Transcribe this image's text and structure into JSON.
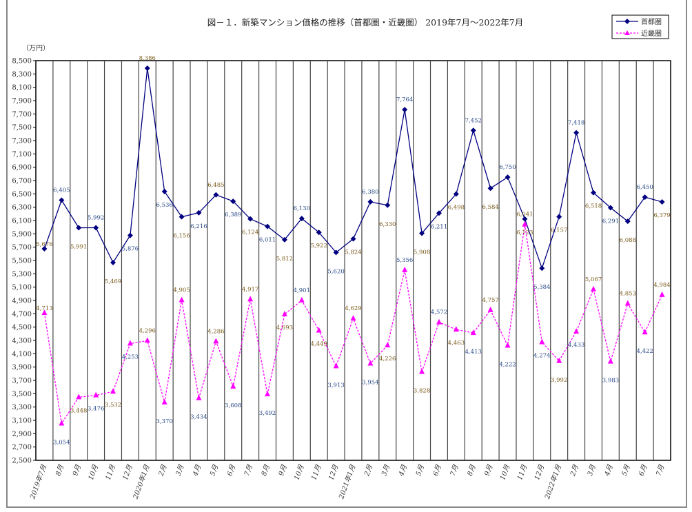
{
  "chart_data": {
    "type": "line",
    "title": "図－１．新築マンション価格の推移（首都圏・近畿圏） 2019年7月～2022年7月",
    "ylabel": "（万円）",
    "xlabel": "",
    "ylim": [
      2500,
      8500
    ],
    "ytick_step": 200,
    "grid": "vertical",
    "legend_position": "top-right",
    "categories": [
      "2019年7月",
      "8月",
      "9月",
      "10月",
      "11月",
      "12月",
      "2020年1月",
      "2月",
      "3月",
      "4月",
      "5月",
      "6月",
      "7月",
      "8月",
      "9月",
      "10月",
      "11月",
      "12月",
      "2021年1月",
      "2月",
      "3月",
      "4月",
      "5月",
      "6月",
      "7月",
      "8月",
      "9月",
      "10月",
      "11月",
      "12月",
      "2022年1月",
      "2月",
      "3月",
      "4月",
      "5月",
      "6月",
      "7月"
    ],
    "series": [
      {
        "name": "首都圏",
        "color": "#000080",
        "marker": "diamond",
        "line": "solid",
        "values": [
          5676,
          6405,
          5991,
          5992,
          5469,
          5876,
          8386,
          6536,
          6156,
          6216,
          6485,
          6389,
          6124,
          6011,
          5812,
          6130,
          5922,
          5620,
          5824,
          6380,
          6330,
          7764,
          5908,
          6211,
          6498,
          7452,
          6584,
          6750,
          6123,
          5384,
          6157,
          7418,
          6518,
          6291,
          6088,
          6450,
          6379
        ]
      },
      {
        "name": "近畿圏",
        "color": "#ff00ff",
        "marker": "triangle",
        "line": "dashed",
        "values": [
          4713,
          3054,
          3448,
          3476,
          3532,
          4253,
          4296,
          3370,
          4905,
          3434,
          4286,
          3608,
          4917,
          3492,
          4693,
          4901,
          4449,
          3913,
          4629,
          3954,
          4226,
          5356,
          3828,
          4572,
          4463,
          4413,
          4757,
          4222,
          6041,
          4274,
          3992,
          4433,
          5067,
          3983,
          4853,
          4422,
          4984
        ]
      }
    ]
  }
}
